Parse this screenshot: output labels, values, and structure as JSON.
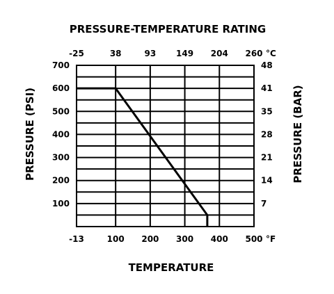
{
  "chart_data": {
    "type": "line",
    "title": "PRESSURE-TEMPERATURE RATING",
    "xlabel": "TEMPERATURE",
    "ylabel": "PRESSURE (PSI)",
    "ylabel_right": "PRESSURE (BAR)",
    "x_unit": "°F",
    "x_unit_top": "°C",
    "xlim": [
      -13,
      500
    ],
    "ylim": [
      0,
      700
    ],
    "grid": true,
    "x_ticks": [
      {
        "value": -13,
        "label": "-13"
      },
      {
        "value": 100,
        "label": "100"
      },
      {
        "value": 200,
        "label": "200"
      },
      {
        "value": 300,
        "label": "300"
      },
      {
        "value": 400,
        "label": "400"
      },
      {
        "value": 500,
        "label": "500"
      }
    ],
    "x_ticks_top": [
      {
        "value": -13,
        "label": "-25"
      },
      {
        "value": 100,
        "label": "38"
      },
      {
        "value": 200,
        "label": "93"
      },
      {
        "value": 300,
        "label": "149"
      },
      {
        "value": 400,
        "label": "204"
      },
      {
        "value": 500,
        "label": "260"
      }
    ],
    "y_ticks": [
      {
        "value": 100,
        "label": "100"
      },
      {
        "value": 200,
        "label": "200"
      },
      {
        "value": 300,
        "label": "300"
      },
      {
        "value": 400,
        "label": "400"
      },
      {
        "value": 500,
        "label": "500"
      },
      {
        "value": 600,
        "label": "600"
      },
      {
        "value": 700,
        "label": "700"
      }
    ],
    "y_ticks_right": [
      {
        "value": 100,
        "label": "7"
      },
      {
        "value": 200,
        "label": "14"
      },
      {
        "value": 300,
        "label": "21"
      },
      {
        "value": 400,
        "label": "28"
      },
      {
        "value": 500,
        "label": "35"
      },
      {
        "value": 600,
        "label": "41"
      },
      {
        "value": 700,
        "label": "48"
      }
    ],
    "y_gridlines": [
      50,
      100,
      150,
      200,
      250,
      300,
      350,
      400,
      450,
      500,
      550,
      600,
      650
    ],
    "x_gridlines": [
      100,
      200,
      300,
      400
    ],
    "series": [
      {
        "color": "#000000",
        "x": [
          -13,
          100,
          365,
          365
        ],
        "y": [
          600,
          600,
          50,
          0
        ]
      }
    ]
  }
}
